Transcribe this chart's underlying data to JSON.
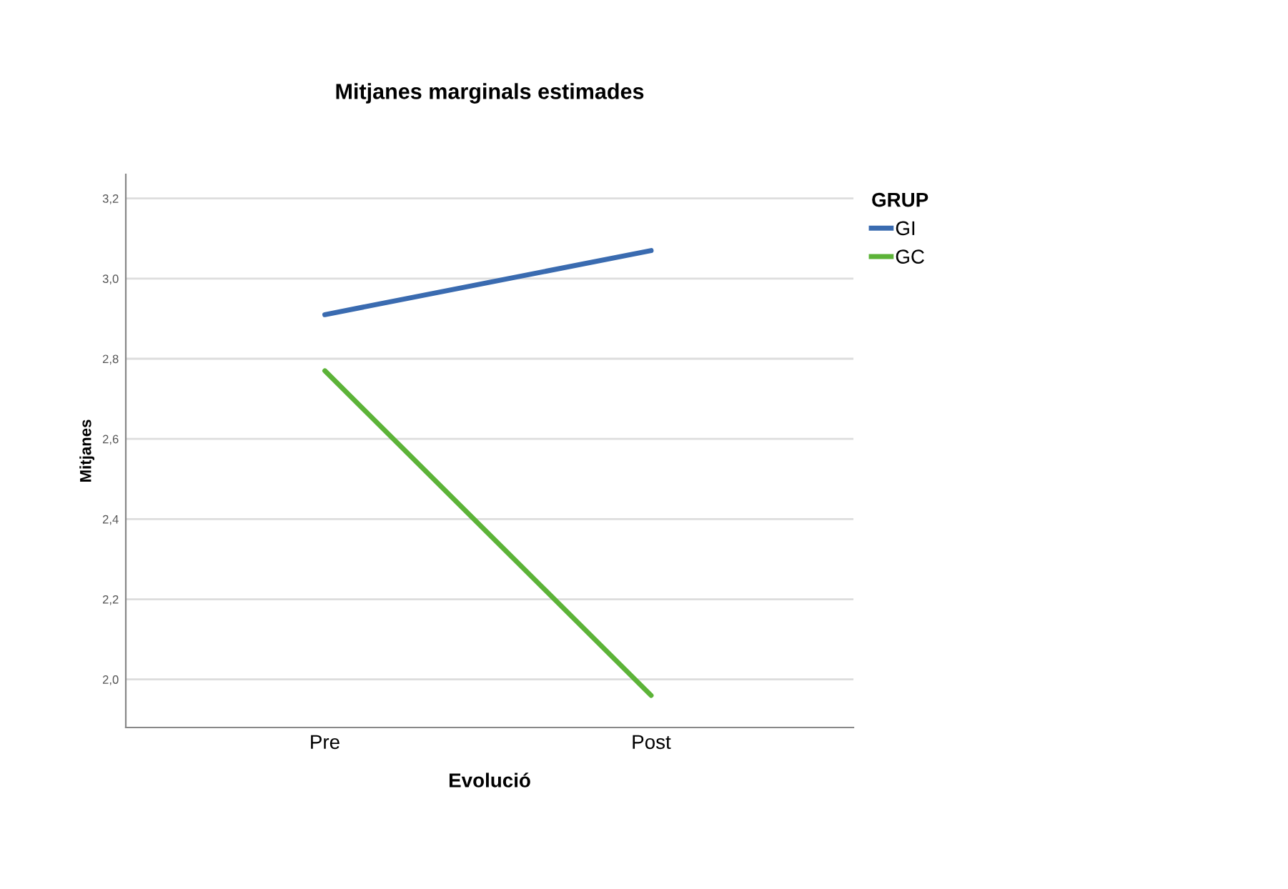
{
  "chart_data": {
    "type": "line",
    "title": "Mitjanes marginals estimades",
    "xlabel": "Evolució",
    "ylabel": "Mitjanes",
    "legend_title": "GRUP",
    "categories": [
      "Pre",
      "Post"
    ],
    "series": [
      {
        "name": "GI",
        "color": "#3a6bb0",
        "values": [
          2.91,
          3.07
        ]
      },
      {
        "name": "GC",
        "color": "#5cb338",
        "values": [
          2.77,
          1.96
        ]
      }
    ],
    "ylim": [
      1.88,
      3.26
    ],
    "yticks": [
      {
        "value": 2.0,
        "label": "2,0"
      },
      {
        "value": 2.2,
        "label": "2,2"
      },
      {
        "value": 2.4,
        "label": "2,4"
      },
      {
        "value": 2.6,
        "label": "2,6"
      },
      {
        "value": 2.8,
        "label": "2,8"
      },
      {
        "value": 3.0,
        "label": "3,0"
      },
      {
        "value": 3.2,
        "label": "3,2"
      }
    ],
    "grid": "y",
    "legend": "top right",
    "marker": "none",
    "line_style": "solid"
  }
}
